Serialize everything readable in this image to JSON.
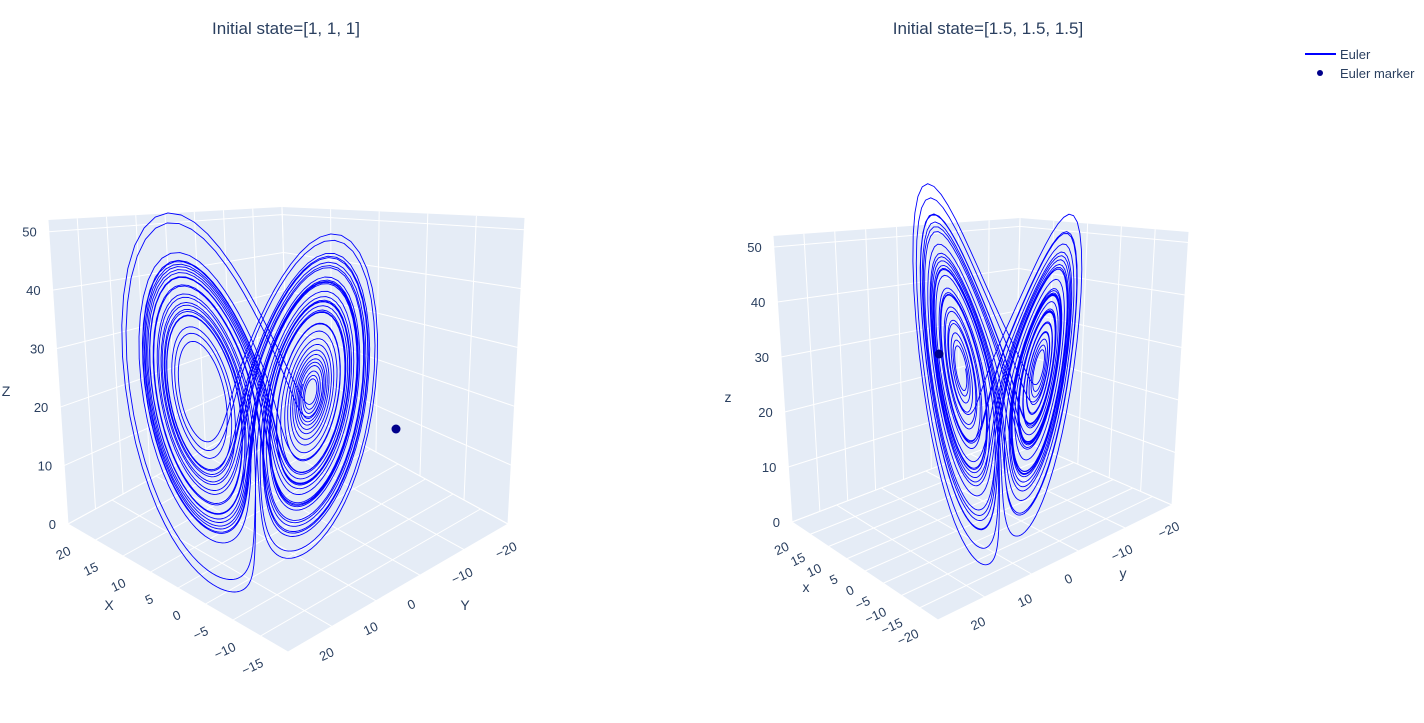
{
  "legend": {
    "items": [
      {
        "label": "Euler",
        "symbol": "line",
        "color": "#0000ff"
      },
      {
        "label": "Euler marker",
        "symbol": "marker",
        "color": "#00008b"
      }
    ]
  },
  "colors": {
    "line": "#0000ff",
    "marker": "#00008b",
    "pane": "#e5ecf6",
    "grid": "#ffffff",
    "text": "#2a3f5f"
  },
  "chart_data": [
    {
      "type": "line",
      "subtype": "3d-trajectory (Lorenz attractor)",
      "title": "Initial state=[1, 1, 1]",
      "xlabel": "X",
      "ylabel": "Y",
      "zlabel": "Z",
      "x_ticks": [
        "20",
        "15",
        "10",
        "5",
        "0",
        "−5",
        "−10",
        "−15"
      ],
      "y_ticks": [
        "−20",
        "−10",
        "0",
        "10",
        "20"
      ],
      "z_ticks": [
        "0",
        "10",
        "20",
        "30",
        "40",
        "50"
      ],
      "xlim": [
        -18,
        21
      ],
      "ylim": [
        -25,
        27
      ],
      "zlim": [
        0,
        52
      ],
      "series": [
        {
          "name": "Euler",
          "mode": "lines"
        },
        {
          "name": "Euler marker",
          "mode": "markers"
        }
      ],
      "initial_state": [
        1,
        1,
        1
      ]
    },
    {
      "type": "line",
      "subtype": "3d-trajectory (Lorenz attractor)",
      "title": "Initial state=[1.5, 1.5, 1.5]",
      "xlabel": "x",
      "ylabel": "y",
      "zlabel": "z",
      "x_ticks": [
        "20",
        "15",
        "10",
        "5",
        "0",
        "−5",
        "−10",
        "−15",
        "−20"
      ],
      "y_ticks": [
        "−20",
        "−10",
        "0",
        "10",
        "20"
      ],
      "z_ticks": [
        "0",
        "10",
        "20",
        "30",
        "40",
        "50"
      ],
      "xlim": [
        -22,
        22
      ],
      "ylim": [
        -25,
        27
      ],
      "zlim": [
        0,
        52
      ],
      "series": [
        {
          "name": "Euler",
          "mode": "lines"
        },
        {
          "name": "Euler marker",
          "mode": "markers"
        }
      ],
      "initial_state": [
        1.5,
        1.5,
        1.5
      ]
    }
  ]
}
